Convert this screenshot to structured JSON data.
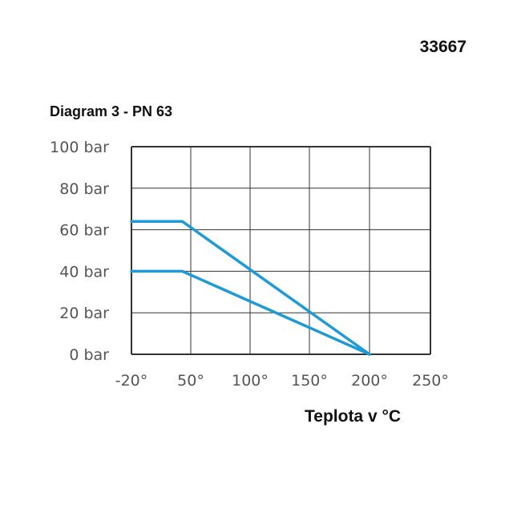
{
  "code": "33667",
  "title": "Diagram 3 - PN 63",
  "chart_data": {
    "type": "line",
    "title": "Diagram 3 - PN 63",
    "xlabel": "Teplota v °C",
    "ylabel": "",
    "xlim": [
      -20,
      250
    ],
    "ylim": [
      0,
      100
    ],
    "x_ticks": [
      -20,
      50,
      100,
      150,
      200,
      250
    ],
    "x_tick_labels": [
      "-20°",
      "50°",
      "100°",
      "150°",
      "200°",
      "250°"
    ],
    "y_ticks": [
      0,
      20,
      40,
      60,
      80,
      100
    ],
    "y_tick_labels": [
      "0 bar",
      "20 bar",
      "40 bar",
      "60 bar",
      "80 bar",
      "100 bar"
    ],
    "grid": true,
    "line_color": "#1e9bd7",
    "series": [
      {
        "x": [
          -20,
          40,
          200
        ],
        "y": [
          64,
          64,
          0
        ]
      },
      {
        "x": [
          -20,
          40,
          200
        ],
        "y": [
          40,
          40,
          0
        ]
      }
    ]
  }
}
